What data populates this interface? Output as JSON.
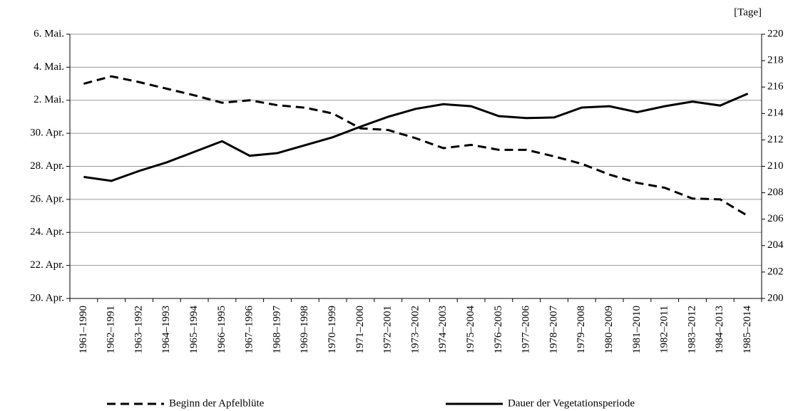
{
  "chart_data": {
    "type": "line",
    "y2_label": "[Tage]",
    "categories": [
      "1961–1990",
      "1962–1991",
      "1963–1992",
      "1964–1993",
      "1965–1994",
      "1966–1995",
      "1967–1996",
      "1968–1997",
      "1969–1998",
      "1970–1999",
      "1971–2000",
      "1972–2001",
      "1973–2002",
      "1974–2003",
      "1975–2004",
      "1976–2005",
      "1977–2006",
      "1978–2007",
      "1979–2008",
      "1980–2009",
      "1981–2010",
      "1982–2011",
      "1983–2012",
      "1984–2013",
      "1985–2014"
    ],
    "series": [
      {
        "name": "Beginn der Apfelblüte",
        "color": "#000000",
        "line_style": "dashed",
        "axis": "y",
        "values": [
          123.0,
          123.45,
          123.1,
          122.7,
          122.3,
          121.85,
          122.0,
          121.7,
          121.55,
          121.2,
          120.3,
          120.2,
          119.7,
          119.1,
          119.3,
          119.0,
          119.0,
          118.6,
          118.15,
          117.5,
          117.0,
          116.7,
          116.05,
          116.0,
          115.0
        ]
      },
      {
        "name": "Dauer der Vegetationsperiode",
        "color": "#000000",
        "line_style": "solid",
        "axis": "y2",
        "values": [
          209.2,
          208.9,
          209.65,
          210.3,
          211.1,
          211.9,
          210.8,
          211.0,
          211.6,
          212.2,
          213.0,
          213.75,
          214.35,
          214.7,
          214.55,
          213.8,
          213.65,
          213.7,
          214.45,
          214.55,
          214.1,
          214.55,
          214.9,
          214.6,
          215.5
        ]
      }
    ],
    "ylim": [
      110,
      126
    ],
    "yticks": [
      {
        "value": 110,
        "label": "20. Apr."
      },
      {
        "value": 112,
        "label": "22. Apr."
      },
      {
        "value": 114,
        "label": "24. Apr."
      },
      {
        "value": 116,
        "label": "26. Apr."
      },
      {
        "value": 118,
        "label": "28. Apr."
      },
      {
        "value": 120,
        "label": "30. Apr."
      },
      {
        "value": 122,
        "label": "2. Mai."
      },
      {
        "value": 124,
        "label": "4. Mai."
      },
      {
        "value": 126,
        "label": "6. Mai."
      }
    ],
    "y2lim": [
      200,
      220
    ],
    "y2ticks": [
      200,
      202,
      204,
      206,
      208,
      210,
      212,
      214,
      216,
      218,
      220
    ],
    "grid": true
  }
}
